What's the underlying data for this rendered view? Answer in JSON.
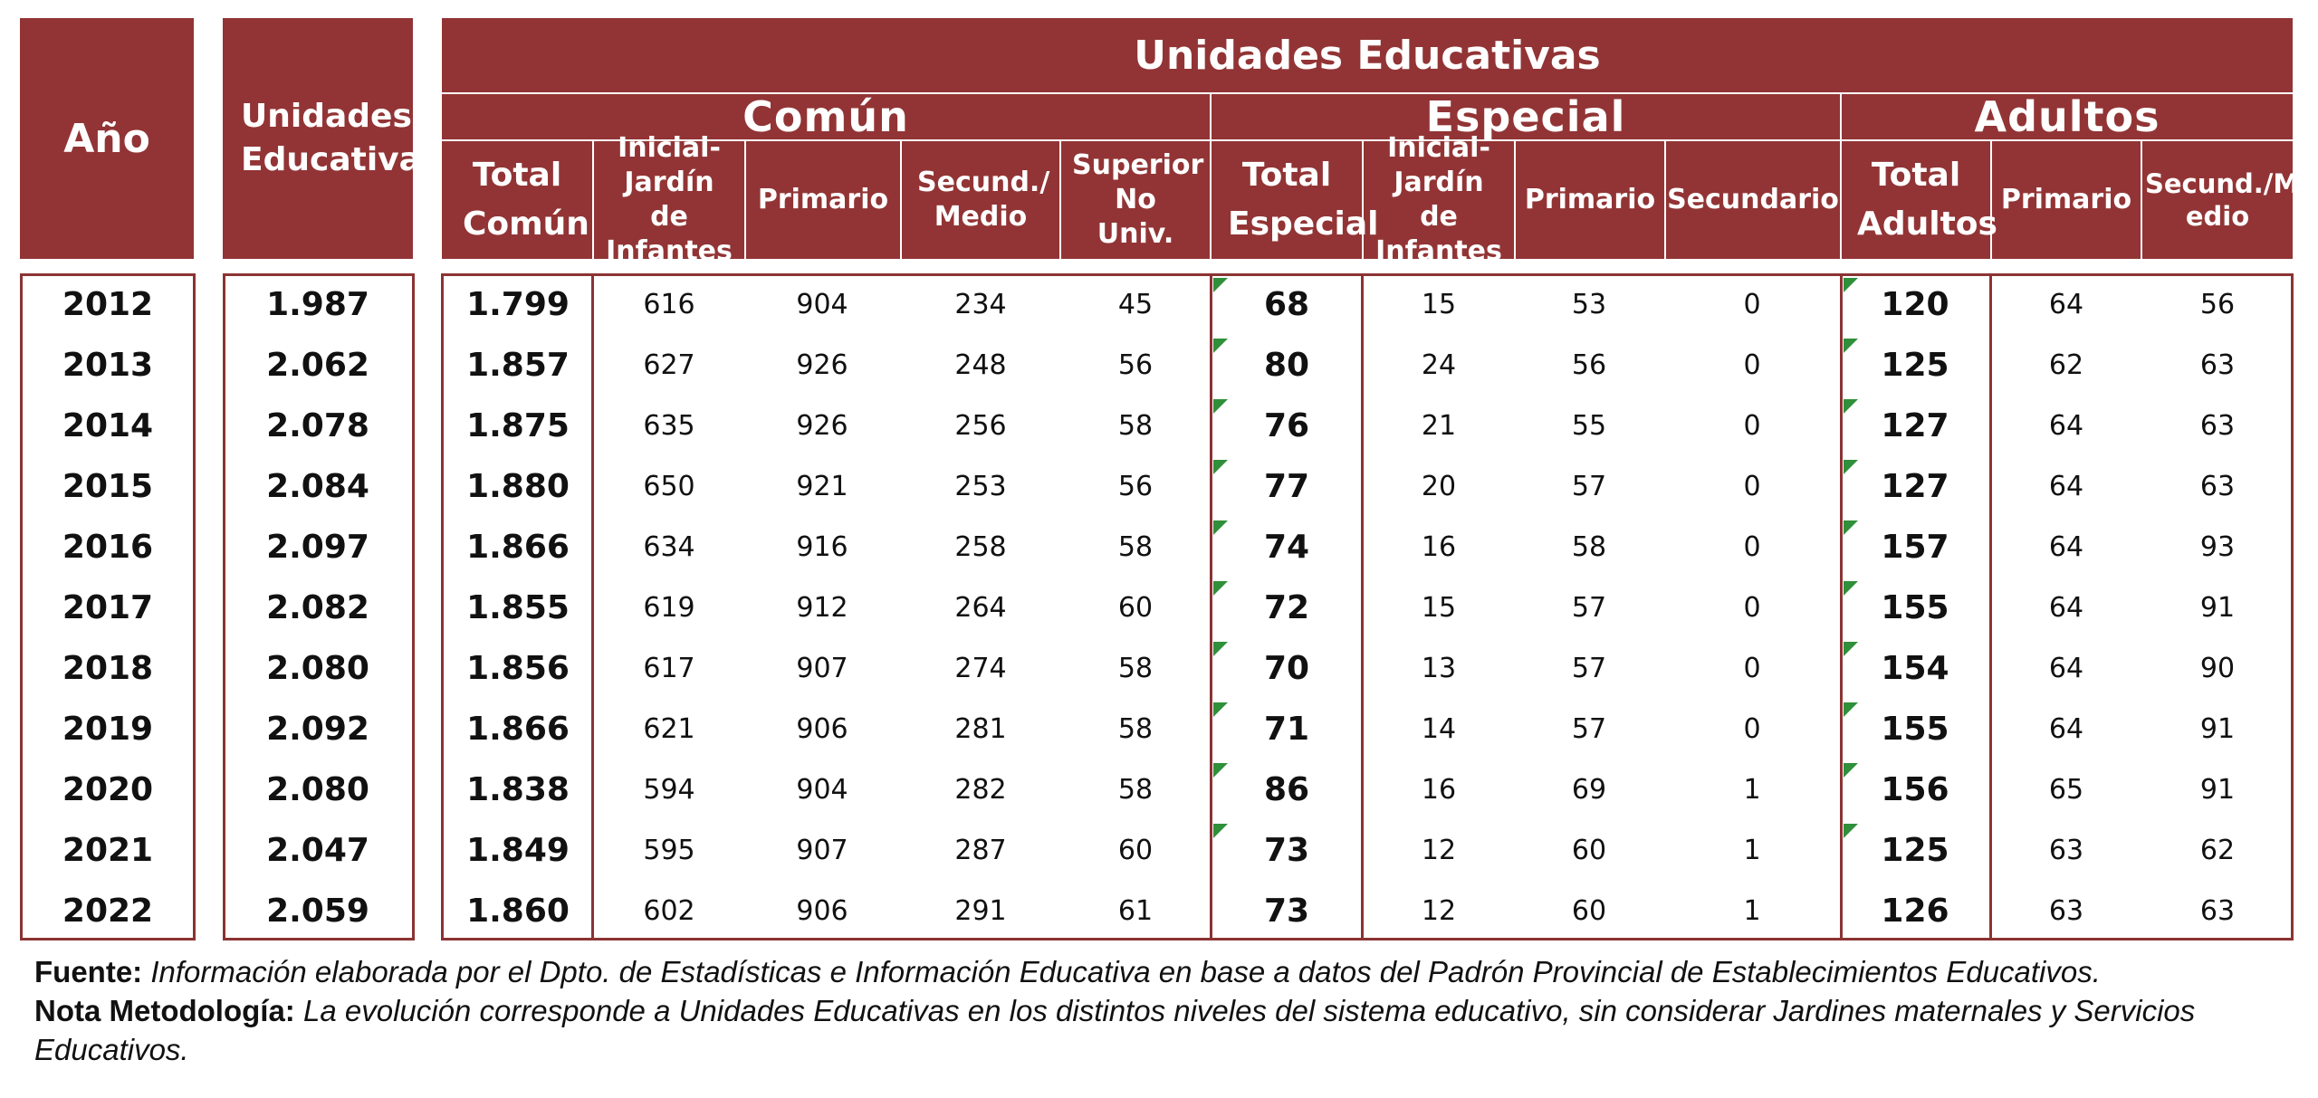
{
  "header": {
    "col_year": "Año",
    "col_units": "Unidades Educativas",
    "group_title": "Unidades Educativas",
    "groups": {
      "comun": "Común",
      "especial": "Especial",
      "adultos": "Adultos"
    },
    "subcols": {
      "total_comun": "Total Común",
      "inicial_comun": "Inicial- Jardín de Infantes",
      "primario_comun": "Primario",
      "secund_medio_comun": "Secund./ Medio",
      "superior": "Superior No Univ.",
      "total_especial": "Total Especial",
      "inicial_especial": "Inicial- Jardín de Infantes",
      "primario_especial": "Primario",
      "secundario_especial": "Secundario",
      "total_adultos": "Total Adultos",
      "primario_adultos": "Primario",
      "secund_medio_adultos": "Secund./M edio"
    }
  },
  "rows": [
    {
      "year": "2012",
      "units": "1.987",
      "total_comun": "1.799",
      "inicial_comun": "616",
      "primario_comun": "904",
      "secund_comun": "234",
      "superior": "45",
      "total_especial": "68",
      "inicial_especial": "15",
      "primario_especial": "53",
      "secundario_especial": "0",
      "total_adultos": "120",
      "primario_adultos": "64",
      "secund_adultos": "56"
    },
    {
      "year": "2013",
      "units": "2.062",
      "total_comun": "1.857",
      "inicial_comun": "627",
      "primario_comun": "926",
      "secund_comun": "248",
      "superior": "56",
      "total_especial": "80",
      "inicial_especial": "24",
      "primario_especial": "56",
      "secundario_especial": "0",
      "total_adultos": "125",
      "primario_adultos": "62",
      "secund_adultos": "63"
    },
    {
      "year": "2014",
      "units": "2.078",
      "total_comun": "1.875",
      "inicial_comun": "635",
      "primario_comun": "926",
      "secund_comun": "256",
      "superior": "58",
      "total_especial": "76",
      "inicial_especial": "21",
      "primario_especial": "55",
      "secundario_especial": "0",
      "total_adultos": "127",
      "primario_adultos": "64",
      "secund_adultos": "63"
    },
    {
      "year": "2015",
      "units": "2.084",
      "total_comun": "1.880",
      "inicial_comun": "650",
      "primario_comun": "921",
      "secund_comun": "253",
      "superior": "56",
      "total_especial": "77",
      "inicial_especial": "20",
      "primario_especial": "57",
      "secundario_especial": "0",
      "total_adultos": "127",
      "primario_adultos": "64",
      "secund_adultos": "63"
    },
    {
      "year": "2016",
      "units": "2.097",
      "total_comun": "1.866",
      "inicial_comun": "634",
      "primario_comun": "916",
      "secund_comun": "258",
      "superior": "58",
      "total_especial": "74",
      "inicial_especial": "16",
      "primario_especial": "58",
      "secundario_especial": "0",
      "total_adultos": "157",
      "primario_adultos": "64",
      "secund_adultos": "93"
    },
    {
      "year": "2017",
      "units": "2.082",
      "total_comun": "1.855",
      "inicial_comun": "619",
      "primario_comun": "912",
      "secund_comun": "264",
      "superior": "60",
      "total_especial": "72",
      "inicial_especial": "15",
      "primario_especial": "57",
      "secundario_especial": "0",
      "total_adultos": "155",
      "primario_adultos": "64",
      "secund_adultos": "91"
    },
    {
      "year": "2018",
      "units": "2.080",
      "total_comun": "1.856",
      "inicial_comun": "617",
      "primario_comun": "907",
      "secund_comun": "274",
      "superior": "58",
      "total_especial": "70",
      "inicial_especial": "13",
      "primario_especial": "57",
      "secundario_especial": "0",
      "total_adultos": "154",
      "primario_adultos": "64",
      "secund_adultos": "90"
    },
    {
      "year": "2019",
      "units": "2.092",
      "total_comun": "1.866",
      "inicial_comun": "621",
      "primario_comun": "906",
      "secund_comun": "281",
      "superior": "58",
      "total_especial": "71",
      "inicial_especial": "14",
      "primario_especial": "57",
      "secundario_especial": "0",
      "total_adultos": "155",
      "primario_adultos": "64",
      "secund_adultos": "91"
    },
    {
      "year": "2020",
      "units": "2.080",
      "total_comun": "1.838",
      "inicial_comun": "594",
      "primario_comun": "904",
      "secund_comun": "282",
      "superior": "58",
      "total_especial": "86",
      "inicial_especial": "16",
      "primario_especial": "69",
      "secundario_especial": "1",
      "total_adultos": "156",
      "primario_adultos": "65",
      "secund_adultos": "91"
    },
    {
      "year": "2021",
      "units": "2.047",
      "total_comun": "1.849",
      "inicial_comun": "595",
      "primario_comun": "907",
      "secund_comun": "287",
      "superior": "60",
      "total_especial": "73",
      "inicial_especial": "12",
      "primario_especial": "60",
      "secundario_especial": "1",
      "total_adultos": "125",
      "primario_adultos": "63",
      "secund_adultos": "62"
    },
    {
      "year": "2022",
      "units": "2.059",
      "total_comun": "1.860",
      "inicial_comun": "602",
      "primario_comun": "906",
      "secund_comun": "291",
      "superior": "61",
      "total_especial": "73",
      "inicial_especial": "12",
      "primario_especial": "60",
      "secundario_especial": "1",
      "total_adultos": "126",
      "primario_adultos": "63",
      "secund_adultos": "63"
    }
  ],
  "footnotes": {
    "source_label": "Fuente:",
    "source_text": "Información elaborada por el Dpto. de Estadísticas e Información Educativa en base a datos del Padrón Provincial de Establecimientos Educativos.",
    "note_label": "Nota Metodología:",
    "note_text": "La evolución corresponde  a Unidades Educativas en los distintos niveles del sistema educativo, sin considerar Jardines maternales y Servicios Educativos."
  },
  "colors": {
    "header_bg": "#923435",
    "border": "#8b3333",
    "comment_marker": "#2f8f3a"
  }
}
